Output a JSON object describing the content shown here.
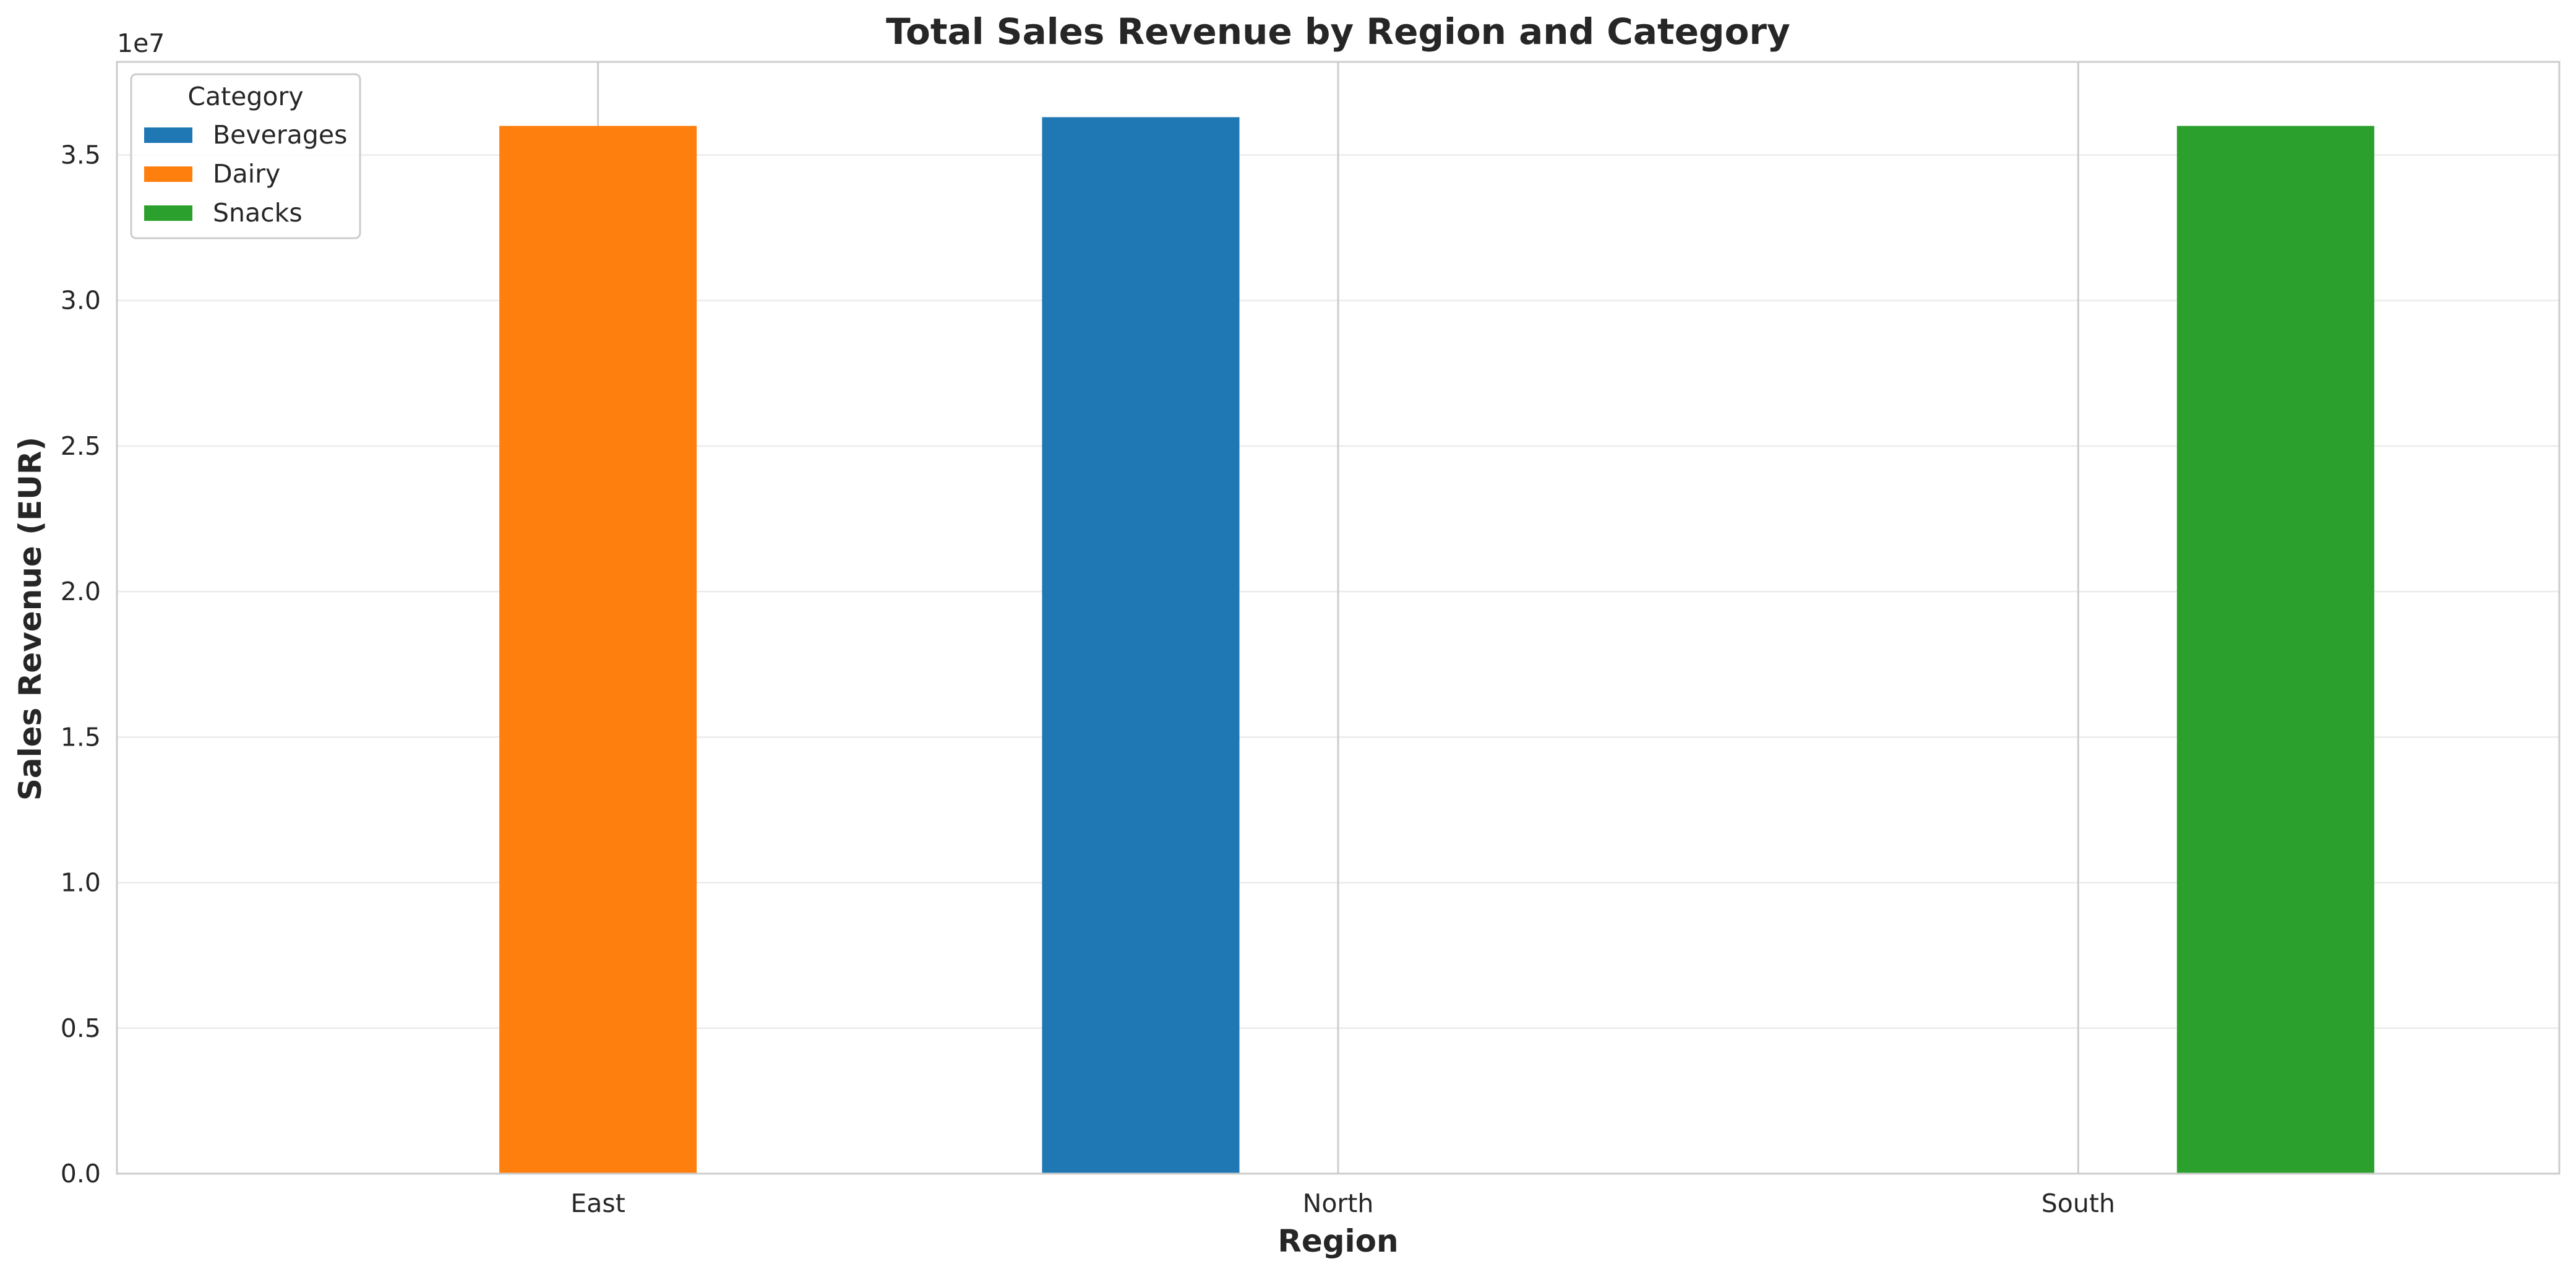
{
  "chart_data": {
    "type": "bar",
    "title": "Total Sales Revenue by Region and Category",
    "xlabel": "Region",
    "ylabel": "Sales Revenue (EUR)",
    "y_offset_label": "1e7",
    "categories": [
      "East",
      "North",
      "South"
    ],
    "yticks": [
      0.0,
      0.5,
      1.0,
      1.5,
      2.0,
      2.5,
      3.0,
      3.5
    ],
    "ytick_labels": [
      "0.0",
      "0.5",
      "1.0",
      "1.5",
      "2.0",
      "2.5",
      "3.0",
      "3.5"
    ],
    "ylim": [
      0,
      3.82
    ],
    "y_multiplier": 10000000,
    "grid": true,
    "legend": {
      "title": "Category",
      "placement": "top-left"
    },
    "series": [
      {
        "name": "Beverages",
        "color": "#1f77b4",
        "values": [
          null,
          3.63,
          null
        ]
      },
      {
        "name": "Dairy",
        "color": "#ff7f0e",
        "values": [
          3.6,
          null,
          null
        ]
      },
      {
        "name": "Snacks",
        "color": "#2ca02c",
        "values": [
          null,
          null,
          3.6
        ]
      }
    ]
  }
}
